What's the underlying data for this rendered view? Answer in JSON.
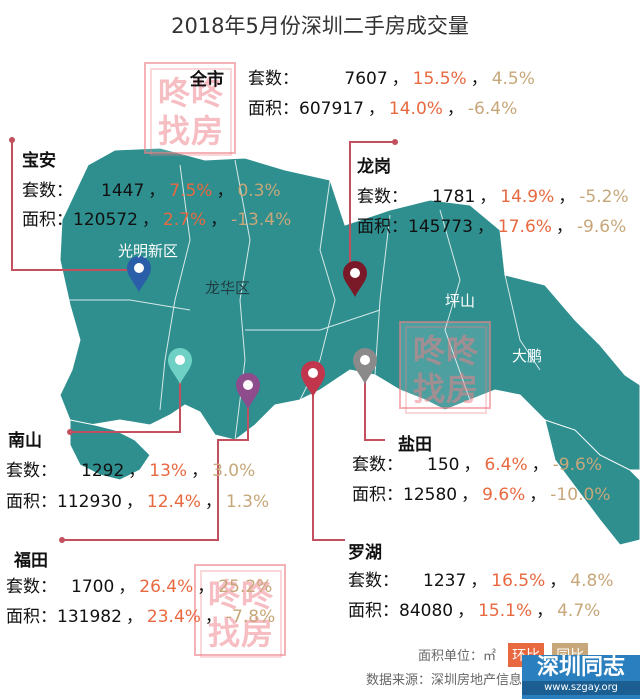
{
  "title": "2018年5月份深圳二手房成交量",
  "watermark_text": [
    "咚咚",
    "找房"
  ],
  "map_labels": [
    "光明新区",
    "龙华区",
    "坪山",
    "大鹏"
  ],
  "districts": [
    {
      "name": "全市",
      "count_label": "套数：",
      "count": "7607",
      "count_hb": "15.5%",
      "count_tb": "4.5%",
      "area_label": "面积：",
      "area": "607917",
      "area_hb": "14.0%",
      "area_tb": "-6.4%"
    },
    {
      "name": "宝安",
      "count_label": "套数：",
      "count": "1447",
      "count_hb": "7.5%",
      "count_tb": "0.3%",
      "area_label": "面积：",
      "area": "120572",
      "area_hb": "2.7%",
      "area_tb": "-13.4%"
    },
    {
      "name": "龙岗",
      "count_label": "套数：",
      "count": "1781",
      "count_hb": "14.9%",
      "count_tb": "-5.2%",
      "area_label": "面积：",
      "area": "145773",
      "area_hb": "17.6%",
      "area_tb": "-9.6%"
    },
    {
      "name": "南山",
      "count_label": "套数：",
      "count": "1292",
      "count_hb": "13%",
      "count_tb": "3.0%",
      "area_label": "面积：",
      "area": "112930",
      "area_hb": "12.4%",
      "area_tb": "1.3%"
    },
    {
      "name": "盐田",
      "count_label": "套数：",
      "count": "150",
      "count_hb": "6.4%",
      "count_tb": "-9.6%",
      "area_label": "面积：",
      "area": "12580",
      "area_hb": "9.6%",
      "area_tb": "-10.0%"
    },
    {
      "name": "福田",
      "count_label": "套数：",
      "count": "1700",
      "count_hb": "26.4%",
      "count_tb": "25.2%",
      "area_label": "面积：",
      "area": "131982",
      "area_hb": "23.4%",
      "area_tb": "-7.8%"
    },
    {
      "name": "罗湖",
      "count_label": "套数：",
      "count": "1237",
      "count_hb": "16.5%",
      "count_tb": "4.8%",
      "area_label": "面积：",
      "area": "84080",
      "area_hb": "15.1%",
      "area_tb": "4.7%"
    }
  ],
  "legend": {
    "unit": "面积单位：㎡",
    "hb": "环比",
    "tb": "同比"
  },
  "source": "数据来源：深圳房地产信息平台",
  "logo": {
    "name": "深圳同志",
    "url": "www.szgay.org"
  },
  "colors": {
    "map": "#2f8f8f",
    "hb": "#e8693f",
    "tb": "#c7a77a",
    "pins": [
      "#2a5ea8",
      "#7a1a28",
      "#6fd1c6",
      "#8e4c8c",
      "#c2364d",
      "#8a8a8a"
    ]
  }
}
